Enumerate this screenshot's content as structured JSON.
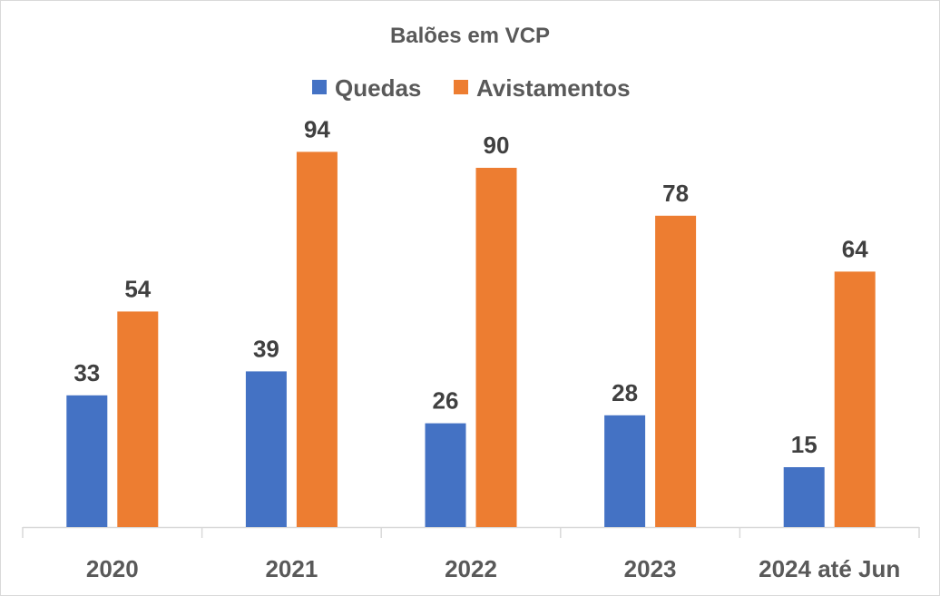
{
  "chart_data": {
    "type": "bar",
    "title": "Balões em VCP",
    "xlabel": "",
    "ylabel": "",
    "categories": [
      "2020",
      "2021",
      "2022",
      "2023",
      "2024 até Jun"
    ],
    "series": [
      {
        "name": "Quedas",
        "values": [
          33,
          39,
          26,
          28,
          15
        ],
        "color": "#4472c4"
      },
      {
        "name": "Avistamentos",
        "values": [
          54,
          94,
          90,
          78,
          64
        ],
        "color": "#ed7d31"
      }
    ],
    "ylim": [
      0,
      100
    ],
    "grid": false,
    "legend_position": "top",
    "data_labels": true
  }
}
